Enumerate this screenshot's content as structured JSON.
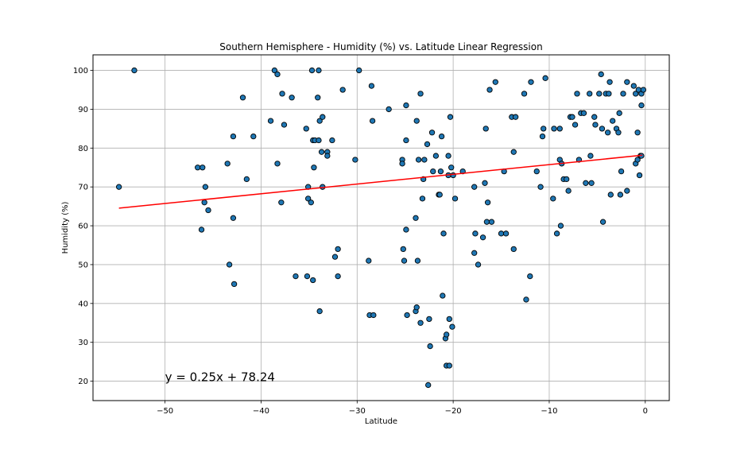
{
  "chart_data": {
    "type": "scatter",
    "title": "Southern Hemisphere - Humidity (%) vs. Latitude Linear Regression",
    "xlabel": "Latitude",
    "ylabel": "Humidity (%)",
    "xlim": [
      -57.5,
      2.5
    ],
    "ylim": [
      15,
      104
    ],
    "xticks": [
      -50,
      -40,
      -30,
      -20,
      -10,
      0
    ],
    "yticks": [
      20,
      30,
      40,
      50,
      60,
      70,
      80,
      90,
      100
    ],
    "grid": true,
    "marker_color": "#1f77b4",
    "marker_edge": "#000000",
    "regression": {
      "slope": 0.25,
      "intercept": 78.24,
      "x_range": [
        -54.8,
        -0.3
      ],
      "color": "#ff0000",
      "equation": "y = 0.25x + 78.24",
      "equation_position": [
        -50,
        20
      ]
    },
    "points": [
      [
        -54.8,
        70
      ],
      [
        -53.2,
        100
      ],
      [
        -46.6,
        75
      ],
      [
        -46.2,
        59
      ],
      [
        -46.1,
        75
      ],
      [
        -45.9,
        66
      ],
      [
        -45.8,
        70
      ],
      [
        -45.5,
        64
      ],
      [
        -43.5,
        76
      ],
      [
        -43.3,
        50
      ],
      [
        -42.9,
        83
      ],
      [
        -42.9,
        62
      ],
      [
        -42.8,
        45
      ],
      [
        -41.9,
        93
      ],
      [
        -41.5,
        72
      ],
      [
        -40.8,
        83
      ],
      [
        -39.0,
        87
      ],
      [
        -38.6,
        100
      ],
      [
        -38.3,
        99
      ],
      [
        -38.3,
        76
      ],
      [
        -37.9,
        66
      ],
      [
        -37.8,
        94
      ],
      [
        -37.6,
        86
      ],
      [
        -36.8,
        93
      ],
      [
        -36.4,
        47
      ],
      [
        -35.3,
        85
      ],
      [
        -35.2,
        47
      ],
      [
        -35.1,
        70
      ],
      [
        -35.1,
        67
      ],
      [
        -34.8,
        66
      ],
      [
        -34.7,
        100
      ],
      [
        -34.6,
        82
      ],
      [
        -34.6,
        46
      ],
      [
        -34.5,
        75
      ],
      [
        -34.4,
        82
      ],
      [
        -34.1,
        93
      ],
      [
        -34.0,
        82
      ],
      [
        -34.0,
        100
      ],
      [
        -33.9,
        38
      ],
      [
        -33.9,
        87
      ],
      [
        -33.7,
        79
      ],
      [
        -33.6,
        88
      ],
      [
        -33.6,
        70
      ],
      [
        -33.1,
        79
      ],
      [
        -33.1,
        78
      ],
      [
        -32.6,
        82
      ],
      [
        -32.3,
        52
      ],
      [
        -32.0,
        54
      ],
      [
        -32.0,
        47
      ],
      [
        -31.5,
        95
      ],
      [
        -30.2,
        77
      ],
      [
        -29.8,
        100
      ],
      [
        -28.8,
        51
      ],
      [
        -28.7,
        37
      ],
      [
        -28.5,
        96
      ],
      [
        -28.4,
        87
      ],
      [
        -28.3,
        37
      ],
      [
        -26.7,
        90
      ],
      [
        -25.3,
        77
      ],
      [
        -25.3,
        76
      ],
      [
        -25.2,
        54
      ],
      [
        -25.1,
        51
      ],
      [
        -24.9,
        82
      ],
      [
        -24.9,
        91
      ],
      [
        -24.9,
        59
      ],
      [
        -24.8,
        37
      ],
      [
        -23.9,
        62
      ],
      [
        -23.9,
        38
      ],
      [
        -23.8,
        87
      ],
      [
        -23.8,
        39
      ],
      [
        -23.7,
        51
      ],
      [
        -23.6,
        77
      ],
      [
        -23.4,
        94
      ],
      [
        -23.4,
        35
      ],
      [
        -23.2,
        67
      ],
      [
        -23.1,
        72
      ],
      [
        -23.0,
        77
      ],
      [
        -22.7,
        81
      ],
      [
        -22.6,
        19
      ],
      [
        -22.5,
        36
      ],
      [
        -22.4,
        29
      ],
      [
        -22.2,
        84
      ],
      [
        -22.1,
        74
      ],
      [
        -21.8,
        78
      ],
      [
        -21.5,
        68
      ],
      [
        -21.4,
        68
      ],
      [
        -21.3,
        74
      ],
      [
        -21.2,
        83
      ],
      [
        -21.1,
        42
      ],
      [
        -21.0,
        58
      ],
      [
        -20.8,
        31
      ],
      [
        -20.7,
        32
      ],
      [
        -20.7,
        24
      ],
      [
        -20.5,
        78
      ],
      [
        -20.5,
        73
      ],
      [
        -20.4,
        24
      ],
      [
        -20.4,
        36
      ],
      [
        -20.3,
        88
      ],
      [
        -20.2,
        75
      ],
      [
        -20.1,
        34
      ],
      [
        -20.0,
        73
      ],
      [
        -19.8,
        67
      ],
      [
        -19.0,
        74
      ],
      [
        -17.8,
        70
      ],
      [
        -17.8,
        53
      ],
      [
        -17.7,
        58
      ],
      [
        -17.4,
        50
      ],
      [
        -16.9,
        57
      ],
      [
        -16.7,
        71
      ],
      [
        -16.6,
        85
      ],
      [
        -16.5,
        61
      ],
      [
        -16.4,
        66
      ],
      [
        -16.2,
        95
      ],
      [
        -16.0,
        61
      ],
      [
        -15.6,
        97
      ],
      [
        -15.0,
        58
      ],
      [
        -14.7,
        74
      ],
      [
        -14.5,
        58
      ],
      [
        -13.9,
        88
      ],
      [
        -13.7,
        54
      ],
      [
        -13.7,
        79
      ],
      [
        -13.5,
        88
      ],
      [
        -12.6,
        94
      ],
      [
        -12.4,
        41
      ],
      [
        -12.0,
        47
      ],
      [
        -11.9,
        97
      ],
      [
        -11.3,
        74
      ],
      [
        -10.9,
        70
      ],
      [
        -10.7,
        83
      ],
      [
        -10.6,
        85
      ],
      [
        -10.4,
        98
      ],
      [
        -9.6,
        67
      ],
      [
        -9.5,
        85
      ],
      [
        -9.2,
        58
      ],
      [
        -8.9,
        77
      ],
      [
        -8.9,
        85
      ],
      [
        -8.8,
        60
      ],
      [
        -8.7,
        76
      ],
      [
        -8.5,
        72
      ],
      [
        -8.2,
        72
      ],
      [
        -8.0,
        69
      ],
      [
        -7.8,
        88
      ],
      [
        -7.6,
        88
      ],
      [
        -7.3,
        86
      ],
      [
        -7.1,
        94
      ],
      [
        -6.9,
        77
      ],
      [
        -6.7,
        89
      ],
      [
        -6.4,
        89
      ],
      [
        -6.2,
        71
      ],
      [
        -5.8,
        94
      ],
      [
        -5.7,
        78
      ],
      [
        -5.6,
        71
      ],
      [
        -5.3,
        88
      ],
      [
        -5.2,
        86
      ],
      [
        -4.8,
        94
      ],
      [
        -4.6,
        99
      ],
      [
        -4.5,
        85
      ],
      [
        -4.4,
        61
      ],
      [
        -4.1,
        94
      ],
      [
        -3.9,
        84
      ],
      [
        -3.8,
        94
      ],
      [
        -3.7,
        97
      ],
      [
        -3.6,
        68
      ],
      [
        -3.4,
        87
      ],
      [
        -3.0,
        85
      ],
      [
        -2.8,
        84
      ],
      [
        -2.7,
        89
      ],
      [
        -2.6,
        68
      ],
      [
        -2.5,
        74
      ],
      [
        -2.3,
        94
      ],
      [
        -1.9,
        69
      ],
      [
        -1.9,
        97
      ],
      [
        -1.2,
        96
      ],
      [
        -1.0,
        76
      ],
      [
        -1.0,
        94
      ],
      [
        -0.8,
        77
      ],
      [
        -0.8,
        84
      ],
      [
        -0.7,
        95
      ],
      [
        -0.6,
        73
      ],
      [
        -0.5,
        78
      ],
      [
        -0.4,
        91
      ],
      [
        -0.4,
        94
      ],
      [
        -0.2,
        95
      ],
      [
        -0.4,
        78
      ]
    ]
  }
}
